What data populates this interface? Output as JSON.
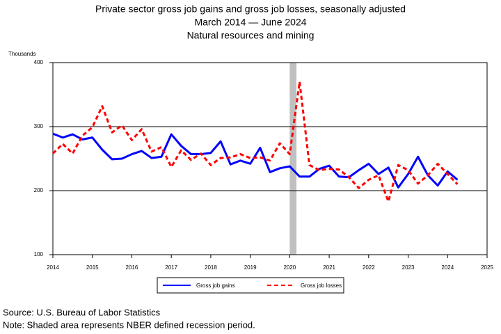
{
  "chart_data": {
    "type": "line",
    "title": "Private sector gross job gains and gross job losses, seasonally adjusted",
    "subtitle": "March 2014 — June 2024",
    "subtitle2": "Natural resources and mining",
    "y_label": "Thousands",
    "x": [
      2014,
      2014.25,
      2014.5,
      2014.75,
      2015,
      2015.25,
      2015.5,
      2015.75,
      2016,
      2016.25,
      2016.5,
      2016.75,
      2017,
      2017.25,
      2017.5,
      2017.75,
      2018,
      2018.25,
      2018.5,
      2018.75,
      2019,
      2019.25,
      2019.5,
      2019.75,
      2020,
      2020.25,
      2020.5,
      2020.75,
      2021,
      2021.25,
      2021.5,
      2021.75,
      2022,
      2022.25,
      2022.5,
      2022.75,
      2023,
      2023.25,
      2023.5,
      2023.75,
      2024,
      2024.25
    ],
    "series": [
      {
        "name": "Gross job gains",
        "color": "#0000ff",
        "dash": "none",
        "values": [
          289,
          283,
          288,
          280,
          283,
          264,
          249,
          250,
          257,
          262,
          251,
          253,
          288,
          270,
          257,
          257,
          259,
          277,
          241,
          247,
          242,
          267,
          229,
          235,
          238,
          222,
          222,
          234,
          239,
          222,
          221,
          232,
          242,
          226,
          236,
          205,
          226,
          253,
          224,
          208,
          230,
          217
        ]
      },
      {
        "name": "Gross job losses",
        "color": "#ff0000",
        "dash": "6,4",
        "values": [
          258,
          273,
          258,
          286,
          299,
          332,
          291,
          302,
          279,
          296,
          261,
          268,
          237,
          263,
          248,
          258,
          240,
          251,
          252,
          257,
          251,
          252,
          247,
          274,
          257,
          370,
          240,
          232,
          234,
          233,
          221,
          204,
          217,
          224,
          183,
          240,
          232,
          211,
          224,
          242,
          226,
          210
        ]
      }
    ],
    "shaded_region": [
      2020,
      2020.17
    ],
    "shaded_color": "#c0c0c0",
    "xlim": [
      2014,
      2025
    ],
    "xticks": [
      2014,
      2015,
      2016,
      2017,
      2018,
      2019,
      2020,
      2021,
      2022,
      2023,
      2024,
      2025
    ],
    "ylim": [
      100,
      400
    ],
    "yticks": [
      100,
      200,
      300,
      400
    ],
    "grid": true,
    "source": "Source: U.S. Bureau of Labor Statistics",
    "note": "Note: Shaded area represents NBER defined recession period."
  }
}
